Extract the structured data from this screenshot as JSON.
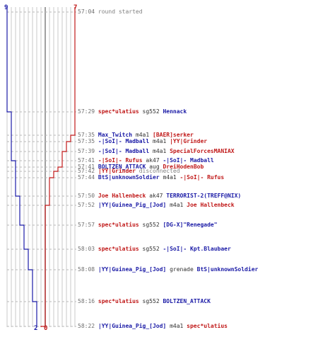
{
  "colors": {
    "blue": "#1a1aa6",
    "red": "#c01818",
    "grid": "#c8c8c8",
    "mid": "#808080"
  },
  "top_counts": {
    "blue": "9",
    "red": "7"
  },
  "bottom_counts": {
    "blue": "2",
    "red": "0"
  },
  "events": [
    {
      "time": "57:04",
      "type": "note",
      "text": "round started"
    },
    {
      "time": "57:29",
      "type": "kill",
      "killer": "spec*ulatius",
      "killer_team": "red",
      "weapon": "sg552",
      "victim": "Hennack",
      "victim_team": "blue"
    },
    {
      "time": "57:35",
      "type": "kill",
      "killer": "Max_Twitch",
      "killer_team": "blue",
      "weapon": "m4a1",
      "victim": "[BAER]serker",
      "victim_team": "red"
    },
    {
      "time": "57:35",
      "type": "kill",
      "killer": "-|SoI|- Madball",
      "killer_team": "blue",
      "weapon": "m4a1",
      "victim": "|YY|Grinder",
      "victim_team": "red"
    },
    {
      "time": "57:39",
      "type": "kill",
      "killer": "-|SoI|- Madball",
      "killer_team": "blue",
      "weapon": "m4a1",
      "victim": "SpecialForcesMANIAX",
      "victim_team": "red"
    },
    {
      "time": "57:41",
      "type": "kill",
      "killer": "-|SoI|- Rufus",
      "killer_team": "red",
      "weapon": "ak47",
      "victim": "-|SoI|- Madball",
      "victim_team": "blue"
    },
    {
      "time": "57:41",
      "type": "kill",
      "killer": "BOLTZEN_ATTACK",
      "killer_team": "blue",
      "weapon": "aug",
      "victim": "DreiHodenBob",
      "victim_team": "red"
    },
    {
      "time": "57:42",
      "type": "note",
      "who": "|YY|Grinder",
      "who_team": "red",
      "text": "disconnected"
    },
    {
      "time": "57:44",
      "type": "kill",
      "killer": "BtS|unknownSoldier",
      "killer_team": "blue",
      "weapon": "m4a1",
      "victim": "-|SoI|- Rufus",
      "victim_team": "red"
    },
    {
      "time": "57:50",
      "type": "kill",
      "killer": "Joe Hallenbeck",
      "killer_team": "red",
      "weapon": "ak47",
      "victim": "TERRORIST-2(TREFF@NIX)",
      "victim_team": "blue"
    },
    {
      "time": "57:52",
      "type": "kill",
      "killer": "|YY|Guinea_Pig_[Jod]",
      "killer_team": "blue",
      "weapon": "m4a1",
      "victim": "Joe Hallenbeck",
      "victim_team": "red"
    },
    {
      "time": "57:57",
      "type": "kill",
      "killer": "spec*ulatius",
      "killer_team": "red",
      "weapon": "sg552",
      "victim": "[DG-X]\"Renegade\"",
      "victim_team": "blue"
    },
    {
      "time": "58:03",
      "type": "kill",
      "killer": "spec*ulatius",
      "killer_team": "red",
      "weapon": "sg552",
      "victim": "-|SoI|- Kpt.Blaubaer",
      "victim_team": "blue"
    },
    {
      "time": "58:08",
      "type": "kill",
      "killer": "|YY|Guinea_Pig_[Jod]",
      "killer_team": "blue",
      "weapon": "grenade",
      "victim": "BtS|unknownSoldier",
      "victim_team": "blue"
    },
    {
      "time": "58:16",
      "type": "kill",
      "killer": "spec*ulatius",
      "killer_team": "red",
      "weapon": "sg552",
      "victim": "BOLTZEN_ATTACK",
      "victim_team": "blue"
    },
    {
      "time": "58:22",
      "type": "kill",
      "killer": "|YY|Guinea_Pig_[Jod]",
      "killer_team": "blue",
      "weapon": "m4a1",
      "victim": "spec*ulatius",
      "victim_team": "red"
    }
  ]
}
